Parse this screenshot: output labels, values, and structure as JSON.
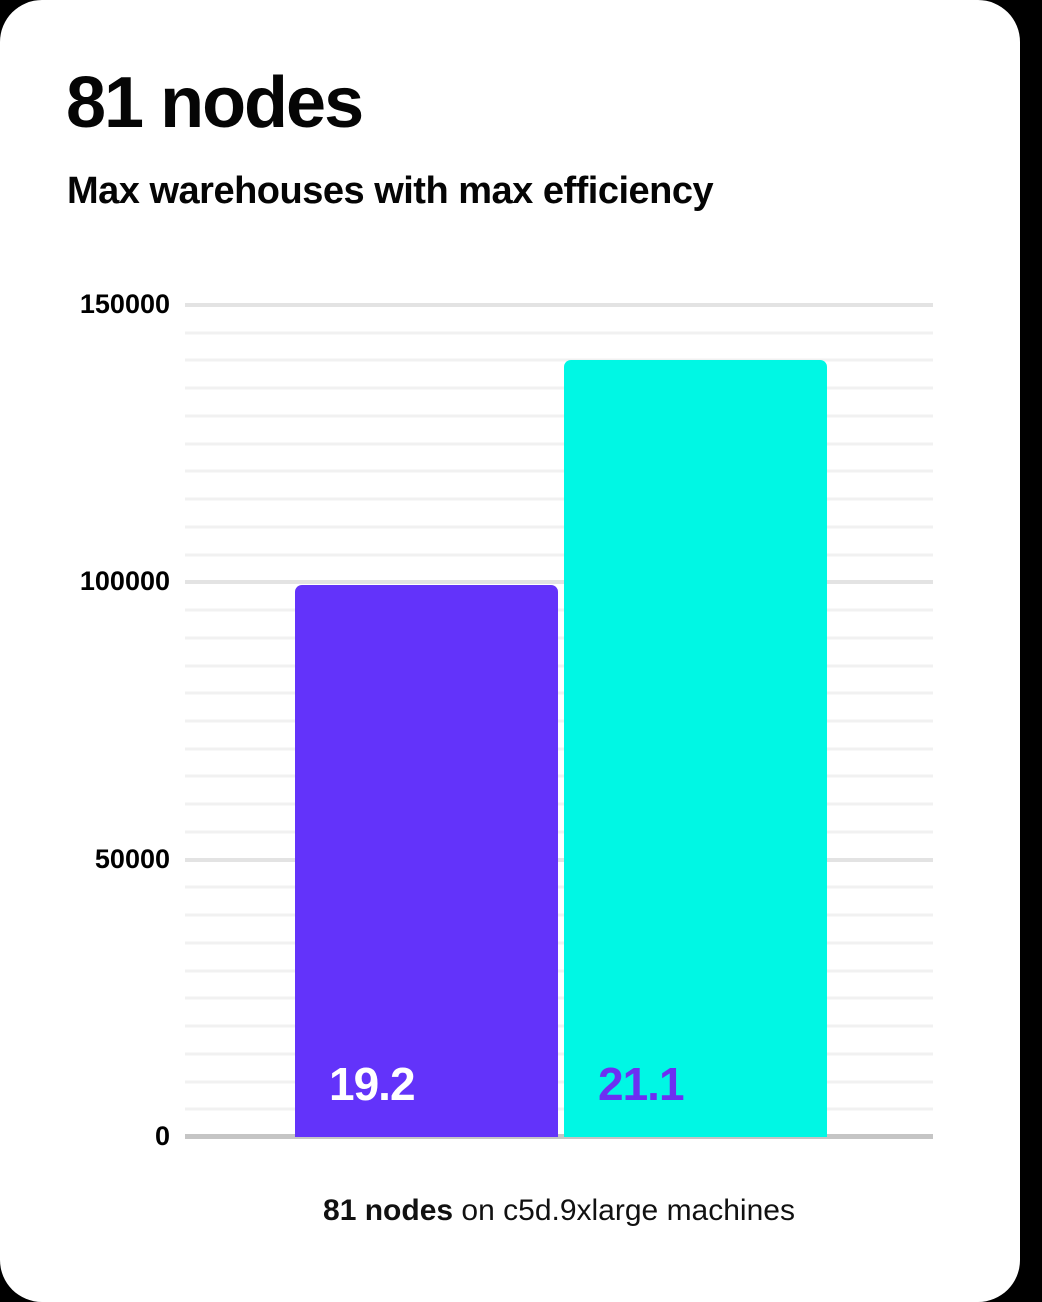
{
  "page": {
    "background": "#000000",
    "card_background": "#ffffff"
  },
  "header": {
    "title": "81 nodes",
    "subtitle": "Max warehouses with max efficiency"
  },
  "caption": {
    "highlight": "81 nodes",
    "text": " on c5d.9xlarge machines"
  },
  "chart_data": {
    "type": "bar",
    "title": "81 nodes",
    "subtitle": "Max warehouses with max efficiency",
    "caption": "81 nodes on c5d.9xlarge machines",
    "categories": [
      "19.2",
      "21.1"
    ],
    "series": [
      {
        "name": "Max warehouses",
        "values": [
          99500,
          140000
        ]
      }
    ],
    "bar_labels": [
      "19.2",
      "21.1"
    ],
    "bar_colors": [
      "#6333fa",
      "#00f7e4"
    ],
    "bar_label_colors": [
      "#ffffff",
      "#6d2ff2"
    ],
    "xlabel": "",
    "ylabel": "",
    "ylim": [
      0,
      150000
    ],
    "yticks": [
      0,
      50000,
      100000,
      150000
    ],
    "ytick_labels": [
      "0",
      "50000",
      "100000",
      "150000"
    ],
    "minor_grid_step": 5000,
    "grid": true,
    "legend_position": "none",
    "grid_colors": {
      "minor": "#f1f1f1",
      "major": "#e3e3e3",
      "baseline": "#c5c5c5"
    }
  }
}
